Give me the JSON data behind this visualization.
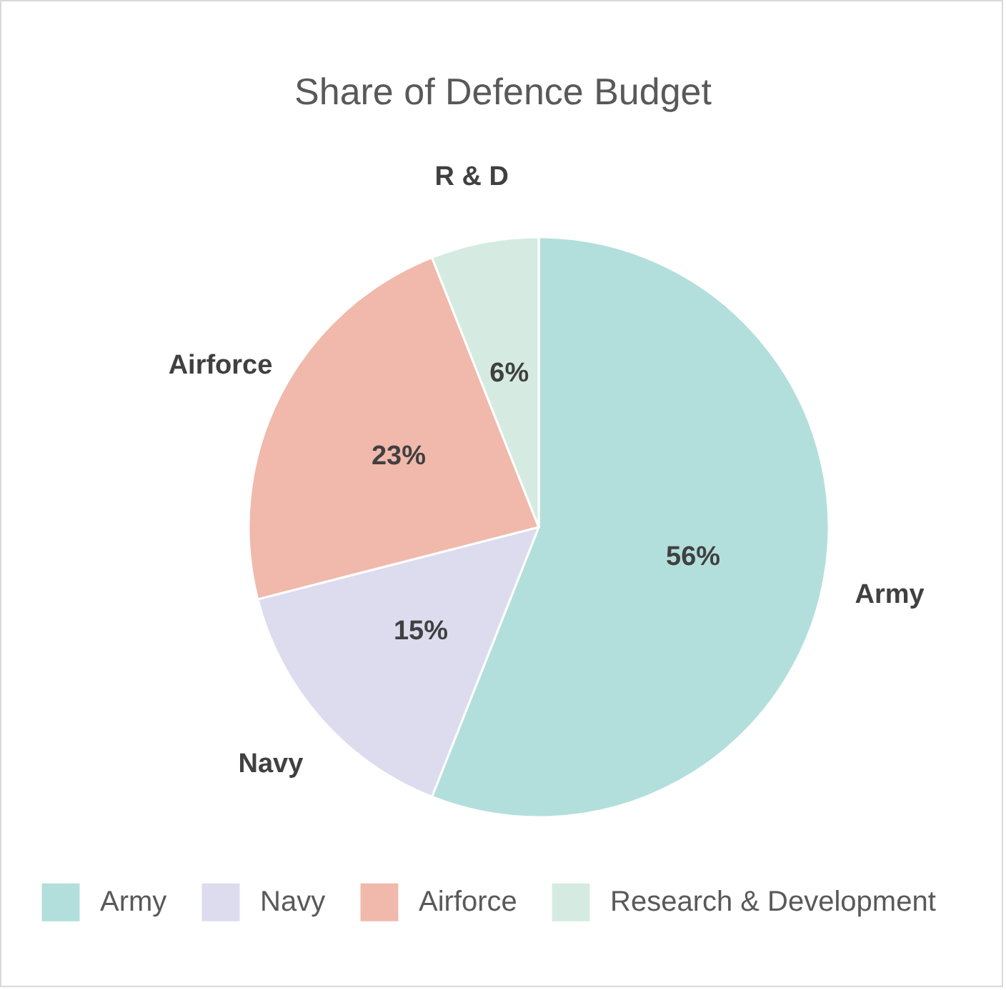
{
  "chart_data": {
    "type": "pie",
    "title": "Share of Defence Budget",
    "categories": [
      "Army",
      "Navy",
      "Airforce",
      "Research &  Development"
    ],
    "values": [
      56,
      15,
      23,
      6
    ],
    "colors": [
      "#b2dfdb",
      "#dcdcee",
      "#f0b9ab",
      "#d5ebe1"
    ],
    "value_labels": [
      "56%",
      "15%",
      "23%",
      "6%"
    ],
    "annotations": [
      "Army",
      "Navy",
      "Airforce",
      "R & D"
    ],
    "legend": "bottom"
  }
}
